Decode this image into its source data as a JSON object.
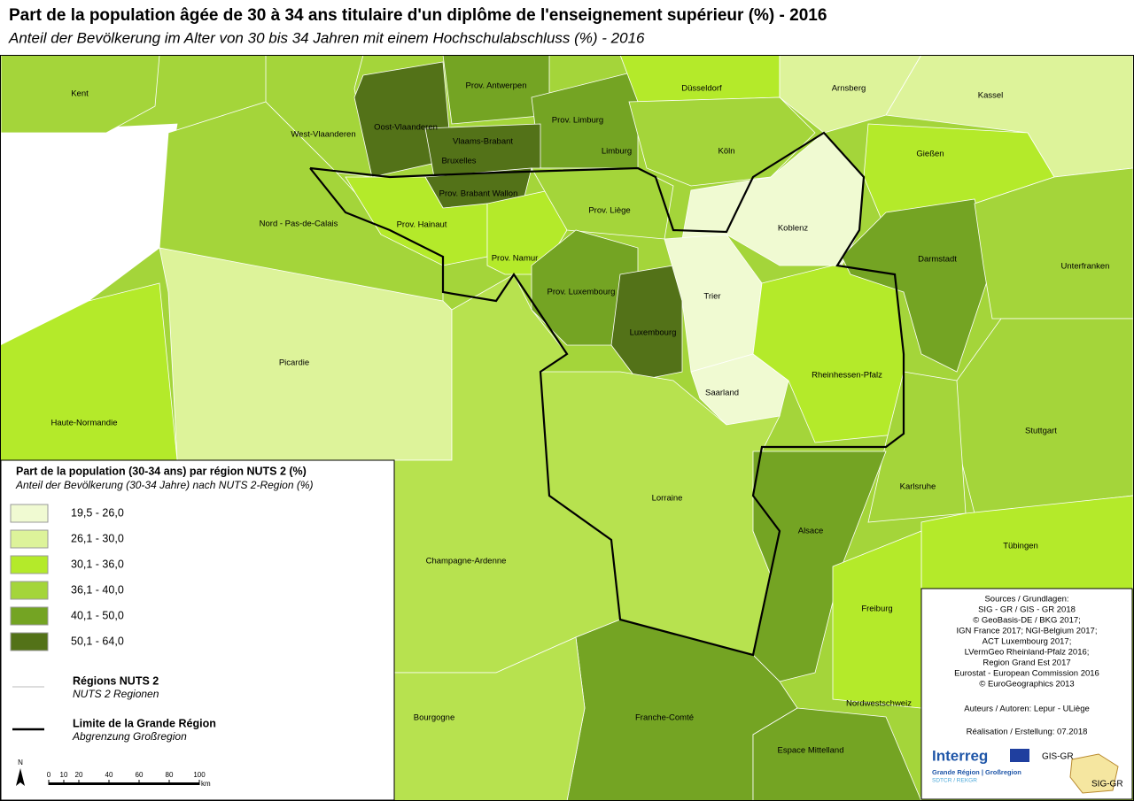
{
  "title": "Part de la population âgée de 30 à 34 ans titulaire d'un diplôme de l'enseignement supérieur (%) - 2016",
  "subtitle": "Anteil der Bevölkerung im Alter von 30 bis 34 Jahren mit einem Hochschulabschluss (%) - 2016",
  "regions": [
    "Kent",
    "West-Vlaanderen",
    "Oost-Vlaanderen",
    "Prov. Antwerpen",
    "Prov. Limburg",
    "Vlaams-Brabant",
    "Bruxelles",
    "Prov. Brabant Wallon",
    "Limburg",
    "Düsseldorf",
    "Arnsberg",
    "Kassel",
    "Köln",
    "Gießen",
    "Nord - Pas-de-Calais",
    "Prov. Hainaut",
    "Prov. Liège",
    "Koblenz",
    "Prov. Namur",
    "Darmstadt",
    "Unterfranken",
    "Prov. Luxembourg",
    "Trier",
    "Luxembourg",
    "Picardie",
    "Rheinhessen-Pfalz",
    "Saarland",
    "Haute-Normandie",
    "Stuttgart",
    "Karlsruhe",
    "Lorraine",
    "Alsace",
    "Tübingen",
    "Champagne-Ardenne",
    "Freiburg",
    "Nordwestschweiz",
    "Bourgogne",
    "Franche-Comté",
    "Espace Mittelland"
  ],
  "legend": {
    "title": "Part de la population (30-34 ans) par région NUTS 2 (%)",
    "subtitle": "Anteil der Bevölkerung (30-34 Jahre) nach NUTS 2-Region (%)",
    "classes": [
      "19,5 - 26,0",
      "26,1 - 30,0",
      "30,1 - 36,0",
      "36,1 - 40,0",
      "40,1 - 50,0",
      "50,1 - 64,0"
    ],
    "nuts_title": "Régions NUTS 2",
    "nuts_subtitle": "NUTS 2 Regionen",
    "border_title": "Limite de la Grande Région",
    "border_subtitle": "Abgrenzung Großregion"
  },
  "scale": {
    "north": "N",
    "ticks": [
      0,
      10,
      20,
      40,
      60,
      80,
      100
    ],
    "unit": "km"
  },
  "sources": [
    "Sources / Grundlagen:",
    "SIG - GR / GIS - GR 2018",
    "© GeoBasis-DE / BKG 2017;",
    "IGN France 2017; NGI-Belgium 2017;",
    "ACT Luxembourg 2017;",
    "LVermGeo Rheinland-Pfalz 2016;",
    "Region Grand Est 2017",
    "Eurostat - European Commission 2016",
    "© EuroGeographics 2013"
  ],
  "authors": "Auteurs / Autoren: Lepur - ULiège",
  "date": "Réalisation / Erstellung: 07.2018",
  "logos": {
    "interreg": "Interreg",
    "interreg_sub": "Grande Région | Großregion",
    "interreg_sub2": "SDTCR / REKGR",
    "gis": "GIS-GR",
    "sig": "SIG-GR"
  }
}
